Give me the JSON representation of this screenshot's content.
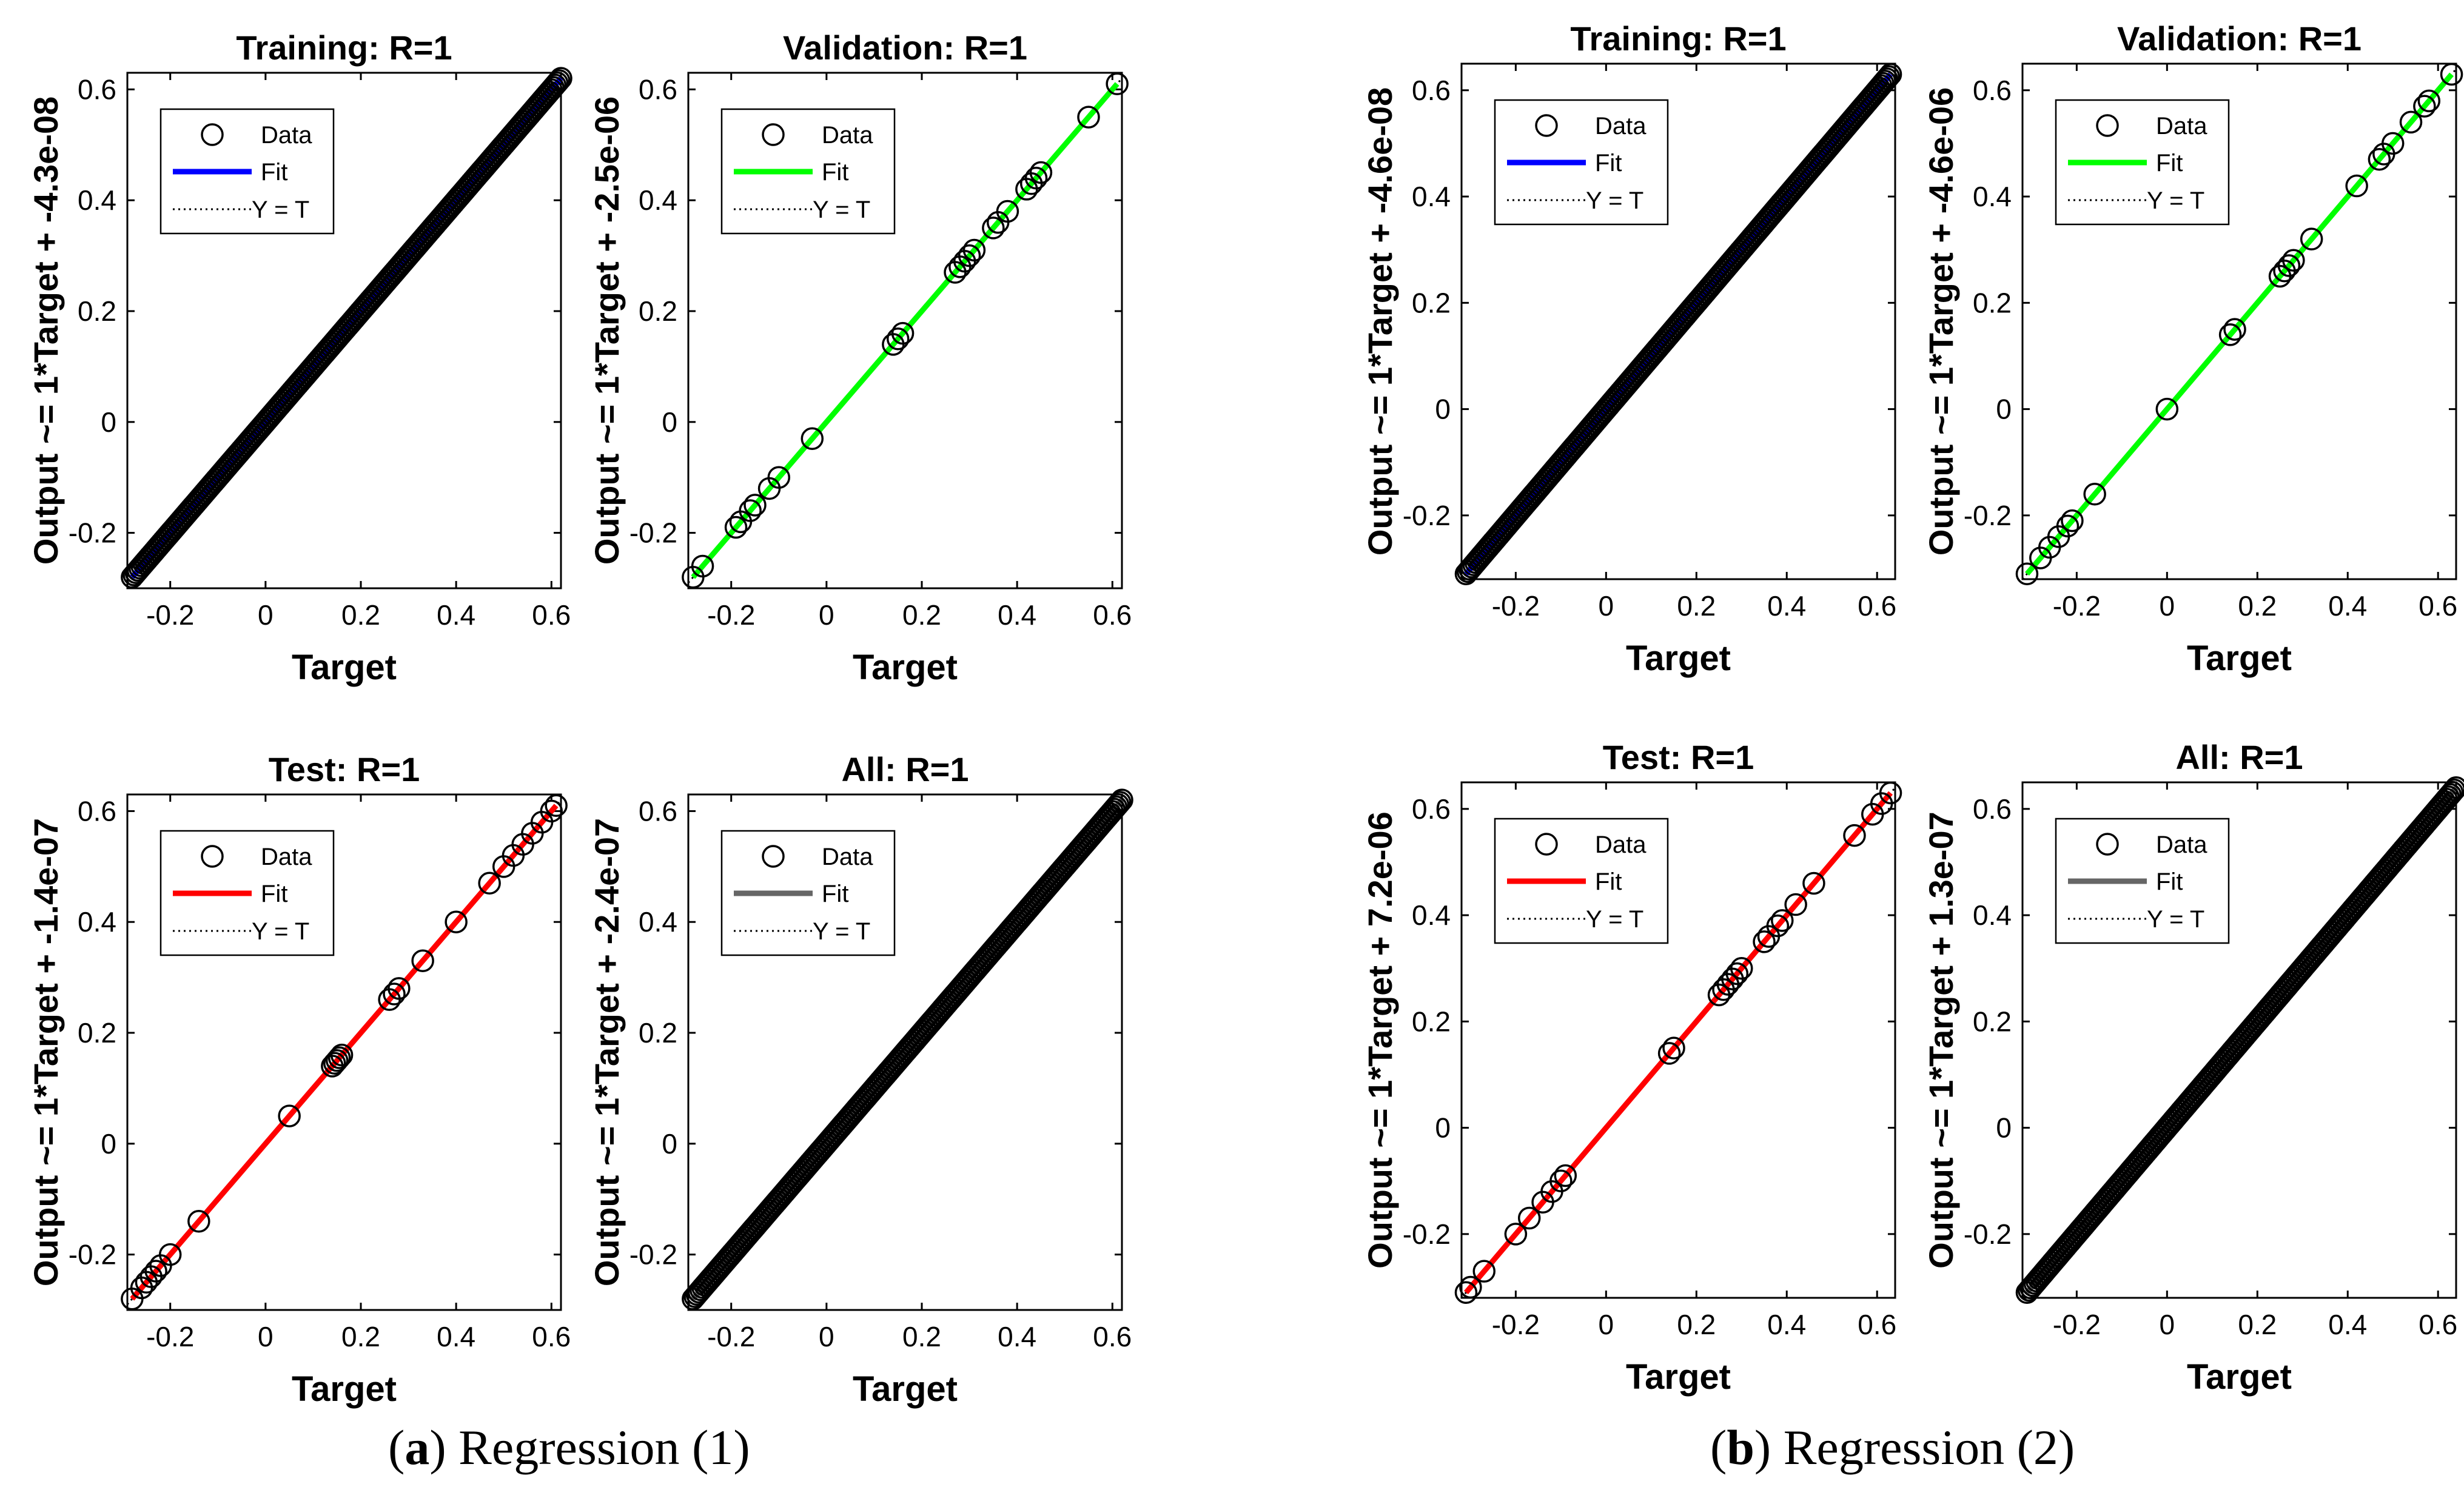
{
  "figure": {
    "captions": [
      {
        "letter": "a",
        "text": " Regression (1)"
      },
      {
        "letter": "b",
        "text": " Regression (2)"
      }
    ],
    "legend_labels": {
      "data": "Data",
      "fit": "Fit",
      "ideal": "Y = T"
    },
    "xlabel": "Target"
  },
  "chart_data": [
    {
      "type": "scatter",
      "group": "a",
      "title": "Training: R=1",
      "xlabel": "Target",
      "ylabel": "Output ~= 1*Target + -4.3e-08",
      "xlim": [
        -0.29,
        0.62
      ],
      "ylim": [
        -0.3,
        0.63
      ],
      "fit_color": "#0000ff",
      "fit_slope": 1,
      "fit_intercept": -4.3e-08,
      "density": "dense",
      "xticks": [
        -0.2,
        0,
        0.2,
        0.4,
        0.6
      ],
      "yticks": [
        -0.2,
        0,
        0.2,
        0.4,
        0.6
      ],
      "legend": [
        "Data",
        "Fit",
        "Y = T"
      ],
      "points": [
        -0.28,
        0.62
      ]
    },
    {
      "type": "scatter",
      "group": "a",
      "title": "Validation: R=1",
      "xlabel": "Target",
      "ylabel": "Output ~= 1*Target + -2.5e-06",
      "xlim": [
        -0.29,
        0.62
      ],
      "ylim": [
        -0.3,
        0.63
      ],
      "fit_color": "#00ff00",
      "fit_slope": 1,
      "fit_intercept": -2.5e-06,
      "density": "sparse",
      "xticks": [
        -0.2,
        0,
        0.2,
        0.4,
        0.6
      ],
      "yticks": [
        -0.2,
        0,
        0.2,
        0.4,
        0.6
      ],
      "legend": [
        "Data",
        "Fit",
        "Y = T"
      ],
      "points": [
        -0.28,
        -0.26,
        -0.19,
        -0.18,
        -0.16,
        -0.15,
        -0.12,
        -0.1,
        -0.03,
        0.14,
        0.15,
        0.16,
        0.27,
        0.28,
        0.29,
        0.3,
        0.31,
        0.35,
        0.36,
        0.38,
        0.42,
        0.43,
        0.44,
        0.45,
        0.55,
        0.61
      ]
    },
    {
      "type": "scatter",
      "group": "a",
      "title": "Test: R=1",
      "xlabel": "Target",
      "ylabel": "Output ~= 1*Target + -1.4e-07",
      "xlim": [
        -0.29,
        0.62
      ],
      "ylim": [
        -0.3,
        0.63
      ],
      "fit_color": "#ff0000",
      "fit_slope": 1,
      "fit_intercept": -1.4e-07,
      "density": "sparse",
      "xticks": [
        -0.2,
        0,
        0.2,
        0.4,
        0.6
      ],
      "yticks": [
        -0.2,
        0,
        0.2,
        0.4,
        0.6
      ],
      "legend": [
        "Data",
        "Fit",
        "Y = T"
      ],
      "points": [
        -0.28,
        -0.26,
        -0.25,
        -0.24,
        -0.23,
        -0.22,
        -0.2,
        -0.14,
        0.05,
        0.14,
        0.145,
        0.15,
        0.155,
        0.16,
        0.26,
        0.27,
        0.28,
        0.33,
        0.4,
        0.47,
        0.5,
        0.52,
        0.54,
        0.56,
        0.58,
        0.6,
        0.61
      ]
    },
    {
      "type": "scatter",
      "group": "a",
      "title": "All: R=1",
      "xlabel": "Target",
      "ylabel": "Output ~= 1*Target + -2.4e-07",
      "xlim": [
        -0.29,
        0.62
      ],
      "ylim": [
        -0.3,
        0.63
      ],
      "fit_color": "#666666",
      "fit_slope": 1,
      "fit_intercept": -2.4e-07,
      "density": "dense",
      "xticks": [
        -0.2,
        0,
        0.2,
        0.4,
        0.6
      ],
      "yticks": [
        -0.2,
        0,
        0.2,
        0.4,
        0.6
      ],
      "legend": [
        "Data",
        "Fit",
        "Y = T"
      ],
      "points": [
        -0.28,
        0.62
      ]
    },
    {
      "type": "scatter",
      "group": "b",
      "title": "Training: R=1",
      "xlabel": "Target",
      "ylabel": "Output ~= 1*Target + -4.6e-08",
      "xlim": [
        -0.32,
        0.64
      ],
      "ylim": [
        -0.32,
        0.65
      ],
      "fit_color": "#0000ff",
      "fit_slope": 1,
      "fit_intercept": -4.6e-08,
      "density": "dense",
      "xticks": [
        -0.2,
        0,
        0.2,
        0.4,
        0.6
      ],
      "yticks": [
        -0.2,
        0,
        0.2,
        0.4,
        0.6
      ],
      "legend": [
        "Data",
        "Fit",
        "Y = T"
      ],
      "points": [
        -0.31,
        0.63
      ]
    },
    {
      "type": "scatter",
      "group": "b",
      "title": "Validation: R=1",
      "xlabel": "Target",
      "ylabel": "Output ~= 1*Target + -4.6e-06",
      "xlim": [
        -0.32,
        0.64
      ],
      "ylim": [
        -0.32,
        0.65
      ],
      "fit_color": "#00ff00",
      "fit_slope": 1,
      "fit_intercept": -4.6e-06,
      "density": "sparse",
      "xticks": [
        -0.2,
        0,
        0.2,
        0.4,
        0.6
      ],
      "yticks": [
        -0.2,
        0,
        0.2,
        0.4,
        0.6
      ],
      "legend": [
        "Data",
        "Fit",
        "Y = T"
      ],
      "points": [
        -0.31,
        -0.28,
        -0.26,
        -0.24,
        -0.22,
        -0.21,
        -0.16,
        0.0,
        0.14,
        0.15,
        0.25,
        0.26,
        0.27,
        0.28,
        0.32,
        0.42,
        0.47,
        0.48,
        0.5,
        0.54,
        0.57,
        0.58,
        0.63
      ]
    },
    {
      "type": "scatter",
      "group": "b",
      "title": "Test: R=1",
      "xlabel": "Target",
      "ylabel": "Output ~= 1*Target + 7.2e-06",
      "xlim": [
        -0.32,
        0.64
      ],
      "ylim": [
        -0.32,
        0.65
      ],
      "fit_color": "#ff0000",
      "fit_slope": 1,
      "fit_intercept": 7.2e-06,
      "density": "sparse",
      "xticks": [
        -0.2,
        0,
        0.2,
        0.4,
        0.6
      ],
      "yticks": [
        -0.2,
        0,
        0.2,
        0.4,
        0.6
      ],
      "legend": [
        "Data",
        "Fit",
        "Y = T"
      ],
      "points": [
        -0.31,
        -0.3,
        -0.27,
        -0.2,
        -0.17,
        -0.14,
        -0.12,
        -0.1,
        -0.09,
        0.14,
        0.15,
        0.25,
        0.26,
        0.27,
        0.28,
        0.29,
        0.3,
        0.35,
        0.36,
        0.38,
        0.39,
        0.42,
        0.46,
        0.55,
        0.59,
        0.61,
        0.63
      ]
    },
    {
      "type": "scatter",
      "group": "b",
      "title": "All: R=1",
      "xlabel": "Target",
      "ylabel": "Output ~= 1*Target + 1.3e-07",
      "xlim": [
        -0.32,
        0.64
      ],
      "ylim": [
        -0.32,
        0.65
      ],
      "fit_color": "#666666",
      "fit_slope": 1,
      "fit_intercept": 1.3e-07,
      "density": "dense",
      "xticks": [
        -0.2,
        0,
        0.2,
        0.4,
        0.6
      ],
      "yticks": [
        -0.2,
        0,
        0.2,
        0.4,
        0.6
      ],
      "legend": [
        "Data",
        "Fit",
        "Y = T"
      ],
      "points": [
        -0.31,
        0.64
      ]
    }
  ]
}
